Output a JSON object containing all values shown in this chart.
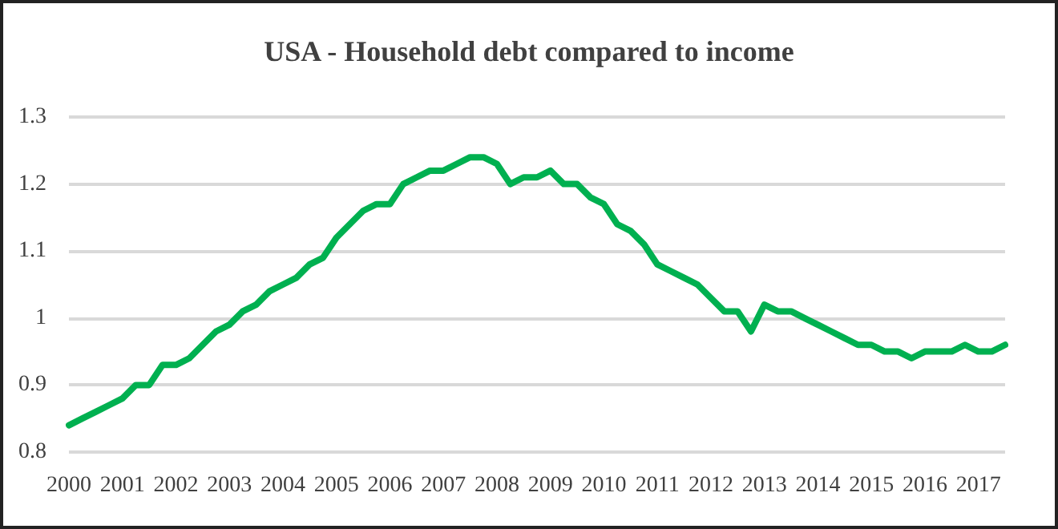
{
  "chart_data": {
    "type": "line",
    "title": "USA - Household debt compared to income",
    "categories": [
      "2000",
      null,
      null,
      null,
      "2001",
      null,
      null,
      null,
      "2002",
      null,
      null,
      null,
      "2003",
      null,
      null,
      null,
      "2004",
      null,
      null,
      null,
      "2005",
      null,
      null,
      null,
      "2006",
      null,
      null,
      null,
      "2007",
      null,
      null,
      null,
      "2008",
      null,
      null,
      null,
      "2009",
      null,
      null,
      null,
      "2010",
      null,
      null,
      null,
      "2011",
      null,
      null,
      null,
      "2012",
      null,
      null,
      null,
      "2013",
      null,
      null,
      null,
      "2014",
      null,
      null,
      null,
      "2015",
      null,
      null,
      null,
      "2016",
      null,
      null,
      null,
      "2017",
      null,
      null
    ],
    "series": [
      {
        "color": "#00b050",
        "values": [
          0.84,
          0.85,
          0.86,
          0.87,
          0.88,
          0.9,
          0.9,
          0.93,
          0.93,
          0.94,
          0.96,
          0.98,
          0.99,
          1.01,
          1.02,
          1.04,
          1.05,
          1.06,
          1.08,
          1.09,
          1.12,
          1.14,
          1.16,
          1.17,
          1.17,
          1.2,
          1.21,
          1.22,
          1.22,
          1.23,
          1.24,
          1.24,
          1.23,
          1.2,
          1.21,
          1.21,
          1.22,
          1.2,
          1.2,
          1.18,
          1.17,
          1.14,
          1.13,
          1.11,
          1.08,
          1.07,
          1.06,
          1.05,
          1.03,
          1.01,
          1.01,
          0.98,
          1.02,
          1.01,
          1.01,
          1.0,
          0.99,
          0.98,
          0.97,
          0.96,
          0.96,
          0.95,
          0.95,
          0.94,
          0.95,
          0.95,
          0.95,
          0.96,
          0.95,
          0.95,
          0.96
        ]
      }
    ],
    "ylim": [
      0.8,
      1.3
    ],
    "yticks": [
      0.8,
      0.9,
      1,
      1.1,
      1.2,
      1.3
    ],
    "grid": "y",
    "marker": "none",
    "line_style": "solid"
  }
}
